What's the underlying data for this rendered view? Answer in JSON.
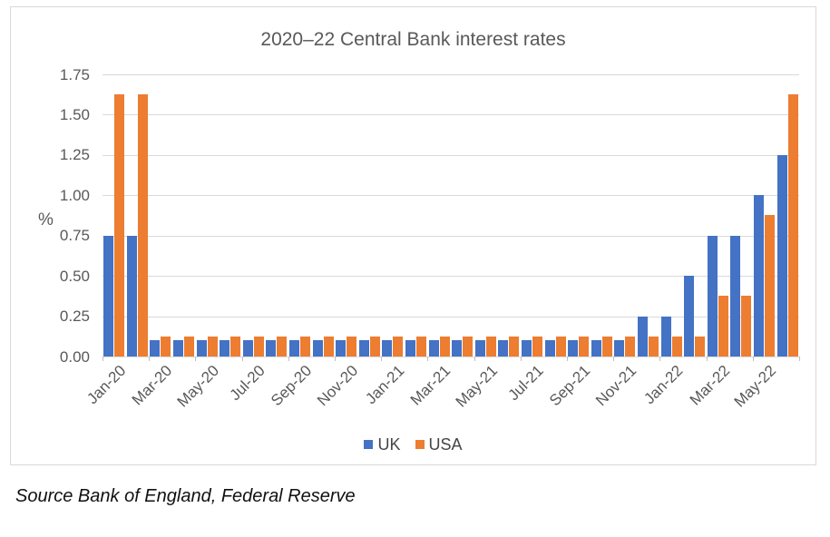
{
  "chart": {
    "title": "2020–22 Central Bank interest rates",
    "y_unit_label": "%"
  },
  "legend": {
    "items": [
      {
        "label": "UK",
        "color": "#4472C4"
      },
      {
        "label": "USA",
        "color": "#ED7D31"
      }
    ]
  },
  "source": "Source Bank of England, Federal Reserve",
  "colors": {
    "uk_bar": "#4472C4",
    "usa_bar": "#ED7D31",
    "gridline": "#D9D9D9",
    "card_border": "#D9D9D9",
    "axis_text": "#595959",
    "title_text": "#595959"
  },
  "chart_data": {
    "type": "bar",
    "title": "2020–22 Central Bank interest rates",
    "xlabel": "",
    "ylabel": "%",
    "ylim": [
      0,
      1.75
    ],
    "yticks": [
      0,
      0.25,
      0.5,
      0.75,
      1.0,
      1.25,
      1.5,
      1.75
    ],
    "ytick_labels": [
      "0.00",
      "0.25",
      "0.50",
      "0.75",
      "1.00",
      "1.25",
      "1.50",
      "1.75"
    ],
    "grid": true,
    "legend_position": "bottom",
    "xtick_label_every": 2,
    "categories": [
      "Jan-20",
      "Feb-20",
      "Mar-20",
      "Apr-20",
      "May-20",
      "Jun-20",
      "Jul-20",
      "Aug-20",
      "Sep-20",
      "Oct-20",
      "Nov-20",
      "Dec-20",
      "Jan-21",
      "Feb-21",
      "Mar-21",
      "Apr-21",
      "May-21",
      "Jun-21",
      "Jul-21",
      "Aug-21",
      "Sep-21",
      "Oct-21",
      "Nov-21",
      "Dec-21",
      "Jan-22",
      "Feb-22",
      "Mar-22",
      "Apr-22",
      "May-22",
      "Jun-22"
    ],
    "series": [
      {
        "name": "UK",
        "color": "#4472C4",
        "values": [
          0.75,
          0.75,
          0.1,
          0.1,
          0.1,
          0.1,
          0.1,
          0.1,
          0.1,
          0.1,
          0.1,
          0.1,
          0.1,
          0.1,
          0.1,
          0.1,
          0.1,
          0.1,
          0.1,
          0.1,
          0.1,
          0.1,
          0.1,
          0.25,
          0.25,
          0.5,
          0.75,
          0.75,
          1.0,
          1.25
        ]
      },
      {
        "name": "USA",
        "color": "#ED7D31",
        "values": [
          1.625,
          1.625,
          0.125,
          0.125,
          0.125,
          0.125,
          0.125,
          0.125,
          0.125,
          0.125,
          0.125,
          0.125,
          0.125,
          0.125,
          0.125,
          0.125,
          0.125,
          0.125,
          0.125,
          0.125,
          0.125,
          0.125,
          0.125,
          0.125,
          0.125,
          0.125,
          0.375,
          0.375,
          0.875,
          1.625
        ]
      }
    ]
  }
}
